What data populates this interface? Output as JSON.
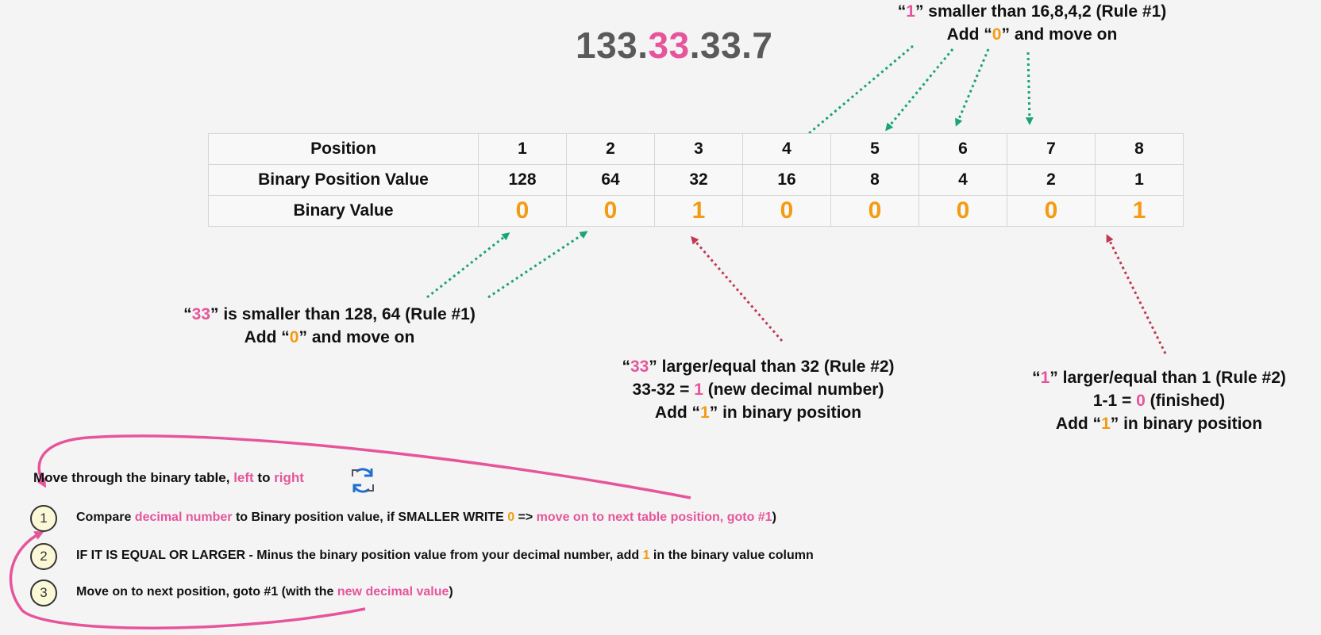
{
  "ip": {
    "part1": "133.",
    "highlight": "33",
    "part2": ".33.7"
  },
  "table": {
    "rows": [
      {
        "label": "Position",
        "values": [
          "1",
          "2",
          "3",
          "4",
          "5",
          "6",
          "7",
          "8"
        ]
      },
      {
        "label": "Binary Position Value",
        "values": [
          "128",
          "64",
          "32",
          "16",
          "8",
          "4",
          "2",
          "1"
        ]
      },
      {
        "label": "Binary Value",
        "values": [
          "0",
          "0",
          "1",
          "0",
          "0",
          "0",
          "0",
          "1"
        ]
      }
    ]
  },
  "notes": {
    "top": {
      "q_open": "“",
      "num": "1",
      "line1_rest": "” smaller than 16,8,4,2 (Rule #1)",
      "line2_pre": "Add “",
      "zero": "0",
      "line2_post": "” and move on"
    },
    "left": {
      "q_open": "“",
      "num": "33",
      "line1_rest": "” is smaller than 128, 64 (Rule #1)",
      "line2_pre": "Add “",
      "zero": "0",
      "line2_post": "” and move on"
    },
    "mid": {
      "q_open": "“",
      "num": "33",
      "line1_rest": "” larger/equal than 32 (Rule #2)",
      "line2_pre": "33-32 = ",
      "result": "1",
      "line2_post": " (new decimal number)",
      "line3_pre": "Add “",
      "one": "1",
      "line3_post": "” in binary position"
    },
    "right": {
      "q_open": "“",
      "num": "1",
      "line1_rest": "” larger/equal than 1 (Rule #2)",
      "line2_pre": "1-1 = ",
      "result": "0",
      "line2_post": " (finished)",
      "line3_pre": "Add “",
      "one": "1",
      "line3_post": "” in binary position"
    }
  },
  "steps_heading": {
    "pre": "Move through the binary table, ",
    "left": "left",
    "mid": " to ",
    "right": "right"
  },
  "steps": [
    {
      "num": "1",
      "a": "Compare ",
      "b": "decimal number",
      "c": "  to Binary position value, if SMALLER WRITE ",
      "d": "0",
      "e": " => ",
      "f": "move on to next table position, goto #1",
      "g": ")"
    },
    {
      "num": "2",
      "a": "IF IT IS EQUAL OR LARGER - Minus the binary position value from your decimal number, add ",
      "b": "1",
      "c": " in the binary value column"
    },
    {
      "num": "3",
      "a": "Move on to next position, goto #1 (with the ",
      "b": "new decimal value",
      "c": ")"
    }
  ],
  "colors": {
    "pink": "#e6559b",
    "orange": "#f39b12",
    "green": "#1aa37a",
    "red": "#c0394f",
    "gray": "#5a5a5a"
  },
  "icons": {
    "refresh": "refresh-cycle-icon"
  }
}
